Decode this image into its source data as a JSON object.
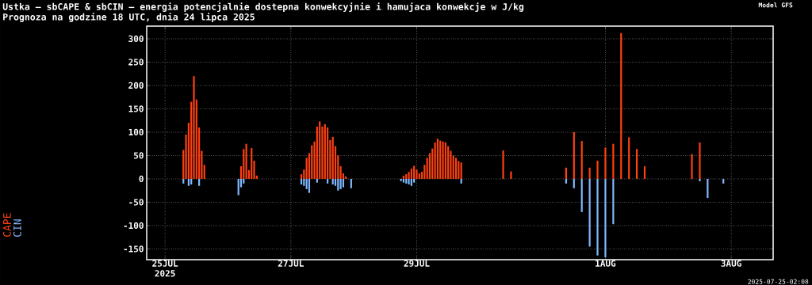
{
  "chart_data": {
    "type": "bar",
    "title": "Ustka – sbCAPE & sbCIN – energia potencjalnie dostepna konwekcyjnie i hamujaca konwekcje w J/kg",
    "subtitle": "Prognoza na godzine 18 UTC, dnia 24 lipca 2025",
    "annotations": [
      "Model GFS",
      "2025",
      "2025-07-25-02:08"
    ],
    "xlim": [
      "2025-07-24T17:00",
      "2025-08-03T16:00"
    ],
    "ylim": [
      -173,
      327
    ],
    "xticks": [
      {
        "value": "2025-07-25",
        "label": "25JUL"
      },
      {
        "value": "2025-07-27",
        "label": "27JUL"
      },
      {
        "value": "2025-07-29",
        "label": "29JUL"
      },
      {
        "value": "2025-08-01",
        "label": "1AUG"
      },
      {
        "value": "2025-08-03",
        "label": "3AUG"
      }
    ],
    "yticks": [
      -150,
      -100,
      -50,
      0,
      50,
      100,
      150,
      200,
      250,
      300
    ],
    "grid": true,
    "legend": "left",
    "series": [
      {
        "name": "CAPE",
        "color": "#ff4010",
        "x": [
          "2025-07-25T07:00",
          "2025-07-25T08:00",
          "2025-07-25T09:00",
          "2025-07-25T10:00",
          "2025-07-25T11:00",
          "2025-07-25T12:00",
          "2025-07-25T13:00",
          "2025-07-25T14:00",
          "2025-07-25T15:00",
          "2025-07-26T05:00",
          "2025-07-26T06:00",
          "2025-07-26T07:00",
          "2025-07-26T08:00",
          "2025-07-26T09:00",
          "2025-07-26T10:00",
          "2025-07-26T11:00",
          "2025-07-27T04:00",
          "2025-07-27T05:00",
          "2025-07-27T06:00",
          "2025-07-27T07:00",
          "2025-07-27T08:00",
          "2025-07-27T09:00",
          "2025-07-27T10:00",
          "2025-07-27T11:00",
          "2025-07-27T12:00",
          "2025-07-27T13:00",
          "2025-07-27T14:00",
          "2025-07-27T15:00",
          "2025-07-27T16:00",
          "2025-07-27T17:00",
          "2025-07-27T18:00",
          "2025-07-27T19:00",
          "2025-07-27T20:00",
          "2025-07-27T21:00",
          "2025-07-28T19:00",
          "2025-07-28T20:00",
          "2025-07-28T21:00",
          "2025-07-28T22:00",
          "2025-07-28T23:00",
          "2025-07-29T00:00",
          "2025-07-29T01:00",
          "2025-07-29T02:00",
          "2025-07-29T03:00",
          "2025-07-29T04:00",
          "2025-07-29T05:00",
          "2025-07-29T06:00",
          "2025-07-29T07:00",
          "2025-07-29T08:00",
          "2025-07-29T09:00",
          "2025-07-29T10:00",
          "2025-07-29T11:00",
          "2025-07-29T12:00",
          "2025-07-29T13:00",
          "2025-07-29T14:00",
          "2025-07-29T15:00",
          "2025-07-29T16:00",
          "2025-07-29T17:00",
          "2025-07-30T09:00",
          "2025-07-30T12:00",
          "2025-07-31T09:00",
          "2025-07-31T12:00",
          "2025-07-31T15:00",
          "2025-07-31T18:00",
          "2025-07-31T21:00",
          "2025-08-01T00:00",
          "2025-08-01T03:00",
          "2025-08-01T06:00",
          "2025-08-01T09:00",
          "2025-08-01T12:00",
          "2025-08-01T15:00",
          "2025-08-02T09:00",
          "2025-08-02T12:00"
        ],
        "values": [
          62,
          95,
          120,
          165,
          220,
          170,
          110,
          60,
          30,
          27,
          64,
          75,
          19,
          66,
          39,
          7,
          10,
          20,
          45,
          55,
          72,
          80,
          112,
          123,
          112,
          117,
          110,
          83,
          90,
          70,
          50,
          27,
          12,
          5,
          7,
          10,
          15,
          22,
          28,
          20,
          12,
          15,
          30,
          45,
          55,
          65,
          78,
          86,
          82,
          80,
          78,
          70,
          60,
          50,
          45,
          38,
          35,
          61,
          16,
          24,
          100,
          81,
          24,
          39,
          67,
          75,
          312,
          89,
          64,
          27,
          53,
          78
        ]
      },
      {
        "name": "CIN",
        "color": "#80b8ff",
        "x": [
          "2025-07-25T07:00",
          "2025-07-25T09:00",
          "2025-07-25T10:00",
          "2025-07-25T13:00",
          "2025-07-26T04:00",
          "2025-07-26T05:00",
          "2025-07-26T06:00",
          "2025-07-27T04:00",
          "2025-07-27T05:00",
          "2025-07-27T06:00",
          "2025-07-27T07:00",
          "2025-07-27T10:00",
          "2025-07-27T14:00",
          "2025-07-27T16:00",
          "2025-07-27T17:00",
          "2025-07-27T18:00",
          "2025-07-27T19:00",
          "2025-07-27T20:00",
          "2025-07-27T23:00",
          "2025-07-28T18:00",
          "2025-07-28T19:00",
          "2025-07-28T20:00",
          "2025-07-28T21:00",
          "2025-07-28T22:00",
          "2025-07-28T23:00",
          "2025-07-29T17:00",
          "2025-07-31T09:00",
          "2025-07-31T12:00",
          "2025-07-31T15:00",
          "2025-07-31T18:00",
          "2025-07-31T21:00",
          "2025-08-01T00:00",
          "2025-08-01T03:00",
          "2025-08-02T12:00",
          "2025-08-02T15:00",
          "2025-08-02T21:00"
        ],
        "values": [
          -10,
          -15,
          -12,
          -15,
          -35,
          -18,
          -10,
          -12,
          -15,
          -22,
          -30,
          -8,
          -10,
          -12,
          -15,
          -25,
          -22,
          -18,
          -20,
          -5,
          -8,
          -10,
          -12,
          -15,
          -8,
          -10,
          -10,
          -20,
          -71,
          -145,
          -164,
          -168,
          -97,
          -5,
          -41,
          -10
        ]
      }
    ]
  }
}
